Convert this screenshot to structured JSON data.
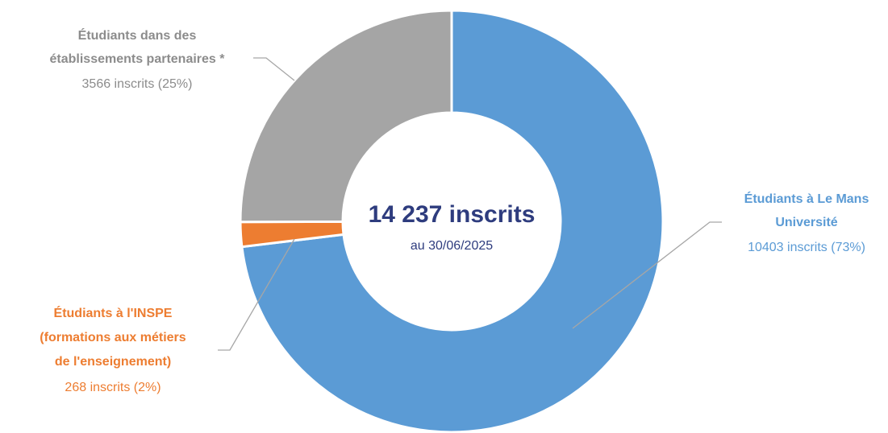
{
  "chart_data": {
    "type": "donut",
    "center_title": "14 237 inscrits",
    "center_subtitle": "au 30/06/2025",
    "categories": [
      [
        "Étudiants à Le Mans",
        "Université"
      ],
      [
        "Étudiants à l'INSPE",
        "(formations aux métiers",
        "de l'enseignement)"
      ],
      [
        "Étudiants dans des",
        "établissements partenaires *"
      ]
    ],
    "values": [
      10403,
      268,
      3566
    ],
    "value_labels": [
      "10403 inscrits (73%)",
      "268 inscrits (2%)",
      "3566 inscrits (25%)"
    ],
    "colors": [
      "#5b9bd5",
      "#ed7d31",
      "#a5a5a5"
    ]
  }
}
